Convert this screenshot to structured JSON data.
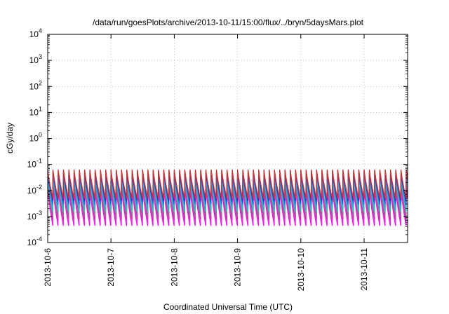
{
  "chart_data": {
    "type": "line",
    "title": "/data/run/goesPlots/archive/2013-10-11/15:00/flux/../bryn/5daysMars.plot",
    "xlabel": "Coordinated Universal Time (UTC)",
    "ylabel": "cGy/day",
    "yscale": "log",
    "ylim": [
      0.0001,
      10000
    ],
    "xlim": [
      "2013-10-06T00:00",
      "2013-10-11T16:30"
    ],
    "grid": true,
    "y_ticks": [
      {
        "value": 0.0001,
        "base": "10",
        "exp": "-4"
      },
      {
        "value": 0.001,
        "base": "10",
        "exp": "-3"
      },
      {
        "value": 0.01,
        "base": "10",
        "exp": "-2"
      },
      {
        "value": 0.1,
        "base": "10",
        "exp": "-1"
      },
      {
        "value": 1,
        "base": "10",
        "exp": "0"
      },
      {
        "value": 10,
        "base": "10",
        "exp": "1"
      },
      {
        "value": 100,
        "base": "10",
        "exp": "2"
      },
      {
        "value": 1000,
        "base": "10",
        "exp": "3"
      },
      {
        "value": 10000,
        "base": "10",
        "exp": "4"
      }
    ],
    "x_ticks": [
      "2013-10-6",
      "2013-10-7",
      "2013-10-8",
      "2013-10-9",
      "2013-10-10",
      "2013-10-11"
    ],
    "cycles_per_day": 12,
    "series": [
      {
        "color": "#ff00ff",
        "peak": 0.012,
        "trough": 0.00045
      },
      {
        "color": "#dd33dd",
        "peak": 0.016,
        "trough": 0.0006
      },
      {
        "color": "#cc3399",
        "peak": 0.02,
        "trough": 0.0008
      },
      {
        "color": "#996699",
        "peak": 0.026,
        "trough": 0.001
      },
      {
        "color": "#22ccaa",
        "peak": 0.032,
        "trough": 0.0015
      },
      {
        "color": "#33aadd",
        "peak": 0.038,
        "trough": 0.002
      },
      {
        "color": "#2266ee",
        "peak": 0.048,
        "trough": 0.003
      },
      {
        "color": "#3333aa",
        "peak": 0.058,
        "trough": 0.004
      },
      {
        "color": "#cc3333",
        "peak": 0.062,
        "trough": 0.005
      }
    ]
  }
}
